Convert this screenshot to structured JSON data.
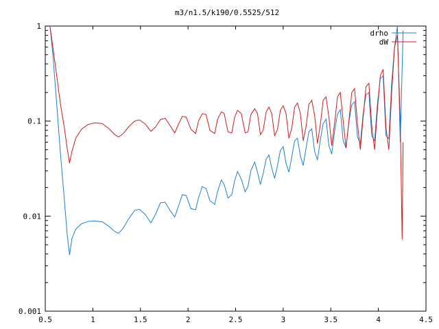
{
  "chart_data": {
    "type": "line",
    "title": "m3/n1.5/k190/0.5525/512",
    "xlabel": "",
    "ylabel": "",
    "xlim": [
      0.5,
      4.5
    ],
    "ylim": [
      0.001,
      1
    ],
    "yscale": "log",
    "grid": false,
    "legend_position": "top-right",
    "x_ticks": [
      0.5,
      1,
      1.5,
      2,
      2.5,
      3,
      3.5,
      4,
      4.5
    ],
    "x_tick_labels": [
      "0.5",
      "1",
      "1.5",
      "2",
      "2.5",
      "3",
      "3.5",
      "4",
      "4.5"
    ],
    "y_ticks": [
      0.001,
      0.01,
      0.1,
      1
    ],
    "y_tick_labels": [
      "0.001",
      "0.01",
      "0.1",
      "1"
    ],
    "series": [
      {
        "name": "drho",
        "color": "#1a7fd6",
        "x": [
          0.55,
          0.58,
          0.62,
          0.66,
          0.7,
          0.73,
          0.755,
          0.78,
          0.82,
          0.88,
          0.95,
          1.02,
          1.1,
          1.17,
          1.23,
          1.27,
          1.32,
          1.38,
          1.44,
          1.49,
          1.55,
          1.61,
          1.66,
          1.71,
          1.76,
          1.81,
          1.86,
          1.9,
          1.94,
          1.98,
          2.03,
          2.08,
          2.11,
          2.15,
          2.19,
          2.23,
          2.28,
          2.31,
          2.35,
          2.38,
          2.42,
          2.46,
          2.49,
          2.52,
          2.56,
          2.6,
          2.63,
          2.66,
          2.7,
          2.73,
          2.76,
          2.79,
          2.82,
          2.85,
          2.88,
          2.91,
          2.94,
          2.97,
          3.0,
          3.03,
          3.06,
          3.09,
          3.12,
          3.15,
          3.18,
          3.21,
          3.24,
          3.27,
          3.3,
          3.33,
          3.36,
          3.39,
          3.42,
          3.45,
          3.48,
          3.51,
          3.54,
          3.57,
          3.6,
          3.63,
          3.66,
          3.69,
          3.72,
          3.75,
          3.78,
          3.81,
          3.84,
          3.87,
          3.9,
          3.93,
          3.96,
          3.99,
          4.02,
          4.05,
          4.08,
          4.11,
          4.14,
          4.17,
          4.2,
          4.23,
          4.26
        ],
        "y": [
          1.0,
          0.5,
          0.15,
          0.045,
          0.015,
          0.0065,
          0.0039,
          0.0058,
          0.0073,
          0.0083,
          0.0088,
          0.0089,
          0.0087,
          0.0078,
          0.0069,
          0.0066,
          0.0075,
          0.0095,
          0.0115,
          0.0118,
          0.0104,
          0.0085,
          0.0105,
          0.0138,
          0.014,
          0.0115,
          0.0098,
          0.0128,
          0.0168,
          0.0165,
          0.012,
          0.0117,
          0.0155,
          0.0205,
          0.0195,
          0.0145,
          0.0133,
          0.018,
          0.024,
          0.0215,
          0.0155,
          0.0168,
          0.0235,
          0.0295,
          0.0245,
          0.018,
          0.0205,
          0.03,
          0.037,
          0.029,
          0.0215,
          0.028,
          0.0395,
          0.044,
          0.032,
          0.025,
          0.034,
          0.049,
          0.054,
          0.036,
          0.029,
          0.042,
          0.062,
          0.066,
          0.043,
          0.034,
          0.052,
          0.077,
          0.083,
          0.048,
          0.039,
          0.063,
          0.094,
          0.105,
          0.055,
          0.045,
          0.078,
          0.118,
          0.132,
          0.062,
          0.052,
          0.098,
          0.148,
          0.16,
          0.068,
          0.058,
          0.12,
          0.19,
          0.2,
          0.07,
          0.062,
          0.15,
          0.28,
          0.3,
          0.07,
          0.065,
          0.25,
          0.6,
          1.0,
          0.06,
          0.9
        ],
        "values_note": ""
      },
      {
        "name": "dW",
        "color": "#d01a1a",
        "x": [
          0.55,
          0.58,
          0.62,
          0.66,
          0.7,
          0.73,
          0.755,
          0.78,
          0.82,
          0.88,
          0.95,
          1.02,
          1.1,
          1.17,
          1.23,
          1.27,
          1.32,
          1.38,
          1.44,
          1.49,
          1.55,
          1.61,
          1.66,
          1.71,
          1.76,
          1.81,
          1.86,
          1.9,
          1.94,
          1.98,
          2.03,
          2.08,
          2.11,
          2.15,
          2.19,
          2.23,
          2.28,
          2.31,
          2.35,
          2.38,
          2.42,
          2.46,
          2.49,
          2.52,
          2.56,
          2.6,
          2.63,
          2.66,
          2.7,
          2.73,
          2.76,
          2.79,
          2.82,
          2.85,
          2.88,
          2.91,
          2.94,
          2.97,
          3.0,
          3.03,
          3.06,
          3.09,
          3.12,
          3.15,
          3.18,
          3.21,
          3.24,
          3.27,
          3.3,
          3.33,
          3.36,
          3.39,
          3.42,
          3.45,
          3.48,
          3.51,
          3.54,
          3.57,
          3.6,
          3.63,
          3.66,
          3.69,
          3.72,
          3.75,
          3.78,
          3.81,
          3.84,
          3.87,
          3.9,
          3.93,
          3.96,
          3.99,
          4.02,
          4.05,
          4.08,
          4.11,
          4.14,
          4.17,
          4.2,
          4.23,
          4.25,
          4.26
        ],
        "y": [
          1.0,
          0.6,
          0.3,
          0.15,
          0.085,
          0.052,
          0.036,
          0.048,
          0.066,
          0.082,
          0.092,
          0.096,
          0.094,
          0.083,
          0.072,
          0.068,
          0.074,
          0.088,
          0.1,
          0.103,
          0.093,
          0.078,
          0.087,
          0.104,
          0.107,
          0.09,
          0.075,
          0.093,
          0.112,
          0.11,
          0.082,
          0.074,
          0.1,
          0.12,
          0.117,
          0.08,
          0.074,
          0.104,
          0.125,
          0.12,
          0.077,
          0.075,
          0.11,
          0.13,
          0.12,
          0.075,
          0.077,
          0.117,
          0.135,
          0.12,
          0.072,
          0.08,
          0.124,
          0.14,
          0.12,
          0.07,
          0.082,
          0.13,
          0.145,
          0.12,
          0.066,
          0.085,
          0.14,
          0.155,
          0.12,
          0.062,
          0.088,
          0.15,
          0.165,
          0.115,
          0.058,
          0.092,
          0.165,
          0.18,
          0.11,
          0.055,
          0.095,
          0.18,
          0.2,
          0.1,
          0.052,
          0.1,
          0.2,
          0.22,
          0.095,
          0.05,
          0.11,
          0.23,
          0.25,
          0.09,
          0.05,
          0.13,
          0.3,
          0.35,
          0.085,
          0.05,
          0.2,
          0.6,
          0.8,
          0.1,
          0.0057,
          0.06
        ]
      }
    ]
  }
}
